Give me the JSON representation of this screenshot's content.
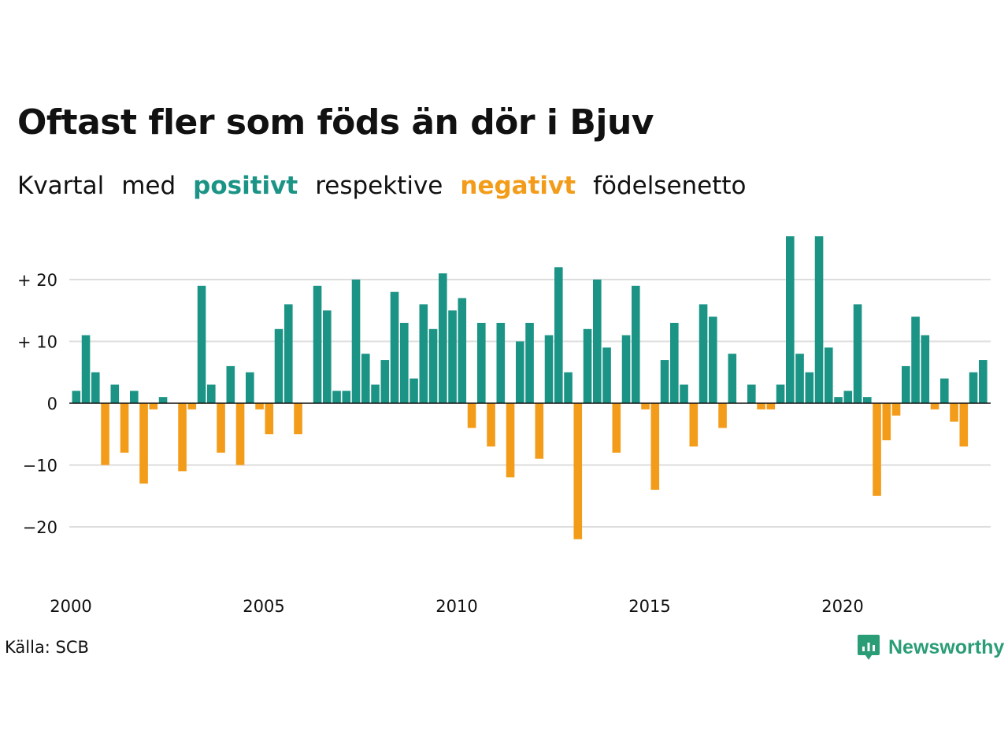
{
  "title": "Oftast fler som föds än dör i Bjuv",
  "subtitle": {
    "w1": "Kvartal",
    "w2": "med",
    "positive": "positivt",
    "w3": "respektive",
    "negative": "negativt",
    "w4": "födelsenetto"
  },
  "source": "Källa: SCB",
  "brand": "Newsworthy",
  "colors": {
    "positive": "#1b9486",
    "negative": "#f39c1a",
    "grid": "#dddddd",
    "text": "#111111"
  },
  "chart_data": {
    "type": "bar",
    "title": "Oftast fler som föds än dör i Bjuv",
    "subtitle": "Kvartal med positivt respektive negativt födelsenetto",
    "xlabel": "",
    "ylabel": "",
    "ylim": [
      -28,
      30
    ],
    "y_ticks": [
      {
        "value": 20,
        "label": "+ 20"
      },
      {
        "value": 10,
        "label": "+ 10"
      },
      {
        "value": 0,
        "label": "0"
      },
      {
        "value": -10,
        "label": "−10"
      },
      {
        "value": -20,
        "label": "−20"
      }
    ],
    "x_ticks": [
      "2000",
      "2005",
      "2010",
      "2015",
      "2020"
    ],
    "grid": true,
    "start_year": 2000,
    "frequency": "quarter",
    "values": [
      2,
      11,
      5,
      -10,
      3,
      -8,
      2,
      -13,
      -1,
      1,
      0,
      -11,
      -1,
      19,
      3,
      -8,
      6,
      -10,
      5,
      -1,
      -5,
      12,
      16,
      -5,
      0,
      19,
      15,
      2,
      2,
      20,
      8,
      3,
      7,
      18,
      13,
      4,
      16,
      12,
      21,
      15,
      17,
      -4,
      13,
      -7,
      13,
      -12,
      10,
      13,
      -9,
      11,
      22,
      5,
      -22,
      12,
      20,
      9,
      -8,
      11,
      19,
      -1,
      -14,
      7,
      13,
      3,
      -7,
      16,
      14,
      -4,
      8,
      0,
      3,
      -1,
      -1,
      3,
      27,
      8,
      5,
      27,
      9,
      1,
      2,
      16,
      1,
      -15,
      -6,
      -2,
      6,
      14,
      11,
      -1,
      4,
      -3,
      -7,
      5,
      7
    ]
  }
}
